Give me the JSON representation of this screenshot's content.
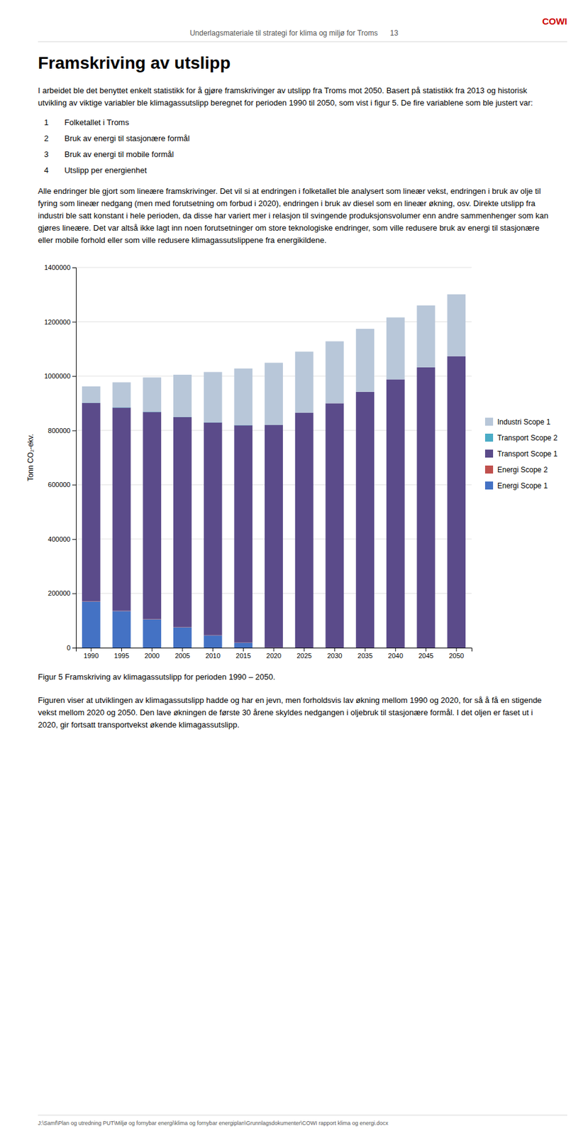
{
  "page": {
    "header_brand": "COWI",
    "header_text": "Underlagsmateriale til strategi for klima og miljø for Troms",
    "header_page": "13",
    "section_title": "Framskriving av utslipp",
    "para1": "I arbeidet ble det benyttet enkelt statistikk for å gjøre framskrivinger av utslipp fra Troms mot 2050. Basert på statistikk fra 2013 og historisk utvikling av viktige variabler ble klimagassutslipp beregnet for perioden 1990 til 2050, som vist i figur 5. De fire variablene som ble justert var:",
    "list_items": [
      "1  Folketallet i Troms",
      "2  Bruk av energi til stasjonære formål",
      "3  Bruk av energi til mobile formål",
      "4  Utslipp per energienhet"
    ],
    "para2": "Alle endringer ble gjort som lineære framskrivinger. Det vil si at endringen i folketallet ble analysert som lineær vekst, endringen i bruk av olje til fyring som lineær nedgang (men med forutsetning om forbud i 2020), endringen i bruk av diesel som en lineær økning, osv. Direkte utslipp fra industri ble satt konstant i hele perioden, da disse har variert mer i relasjon til svingende produksjonsvolumer enn andre sammenhenger som kan gjøres lineære. Det var altså ikke lagt inn noen forutsetninger om store teknologiske endringer, som ville redusere bruk av energi til stasjonære eller mobile forhold eller som ville redusere klimagassutslippene fra energikildene.",
    "para3": "Figuren viser at utviklingen av klimagassutslipp hadde og har en jevn, men forholdsvis lav økning mellom 1990 og 2020, for så å få en stigende vekst mellom 2020 og 2050. Den lave økningen de første 30 årene skyldes nedgangen i oljebruk til stasjonære formål. I det oljen er faset ut i 2020, gir fortsatt transportvekst økende klimagassutslipp.",
    "footer_text": "J:\\Samf\\Plan og utredning PUT\\Miljø og fornybar energi\\klima og fornybar energiplan\\Grunnlagsdokumenter\\COWI rapport klima og energi.docx"
  },
  "chart_data": {
    "type": "bar",
    "stacked": true,
    "title": "Figur 5 Framskriving av klimagassutslipp for perioden 1990 – 2050.",
    "categories": [
      1990,
      1995,
      2000,
      2005,
      2010,
      2015,
      2020,
      2025,
      2030,
      2035,
      2040,
      2045,
      2050
    ],
    "series": [
      {
        "name": "Energi Scope 1",
        "color": "#4472C4",
        "values": [
          170000,
          135000,
          105000,
          75000,
          45000,
          18000,
          0,
          0,
          0,
          0,
          0,
          0,
          0
        ]
      },
      {
        "name": "Energi Scope 2",
        "color": "#C0504D",
        "values": [
          1000,
          1000,
          1000,
          1000,
          1000,
          1000,
          500,
          0,
          0,
          0,
          0,
          0,
          0
        ]
      },
      {
        "name": "Transport Scope 1",
        "color": "#5B4B8A",
        "values": [
          730000,
          748000,
          762000,
          773000,
          783000,
          800000,
          820000,
          865000,
          900000,
          942000,
          988000,
          1032000,
          1073000
        ]
      },
      {
        "name": "Transport Scope 2",
        "color": "#4BACC6",
        "values": [
          1000,
          1000,
          1000,
          1000,
          1000,
          1000,
          500,
          0,
          0,
          0,
          0,
          0,
          0
        ]
      },
      {
        "name": "Industri Scope 1",
        "color": "#B8C7D9",
        "values": [
          60000,
          92000,
          126000,
          155000,
          185000,
          208000,
          228000,
          225000,
          228000,
          232000,
          228000,
          228000,
          228000
        ]
      }
    ],
    "ylabel": "Tonn CO₂-ekv.",
    "ylim": [
      0,
      1400000
    ],
    "yticks": [
      0,
      200000,
      400000,
      600000,
      800000,
      1000000,
      1200000,
      1400000
    ],
    "grid": true,
    "legend": "right"
  }
}
